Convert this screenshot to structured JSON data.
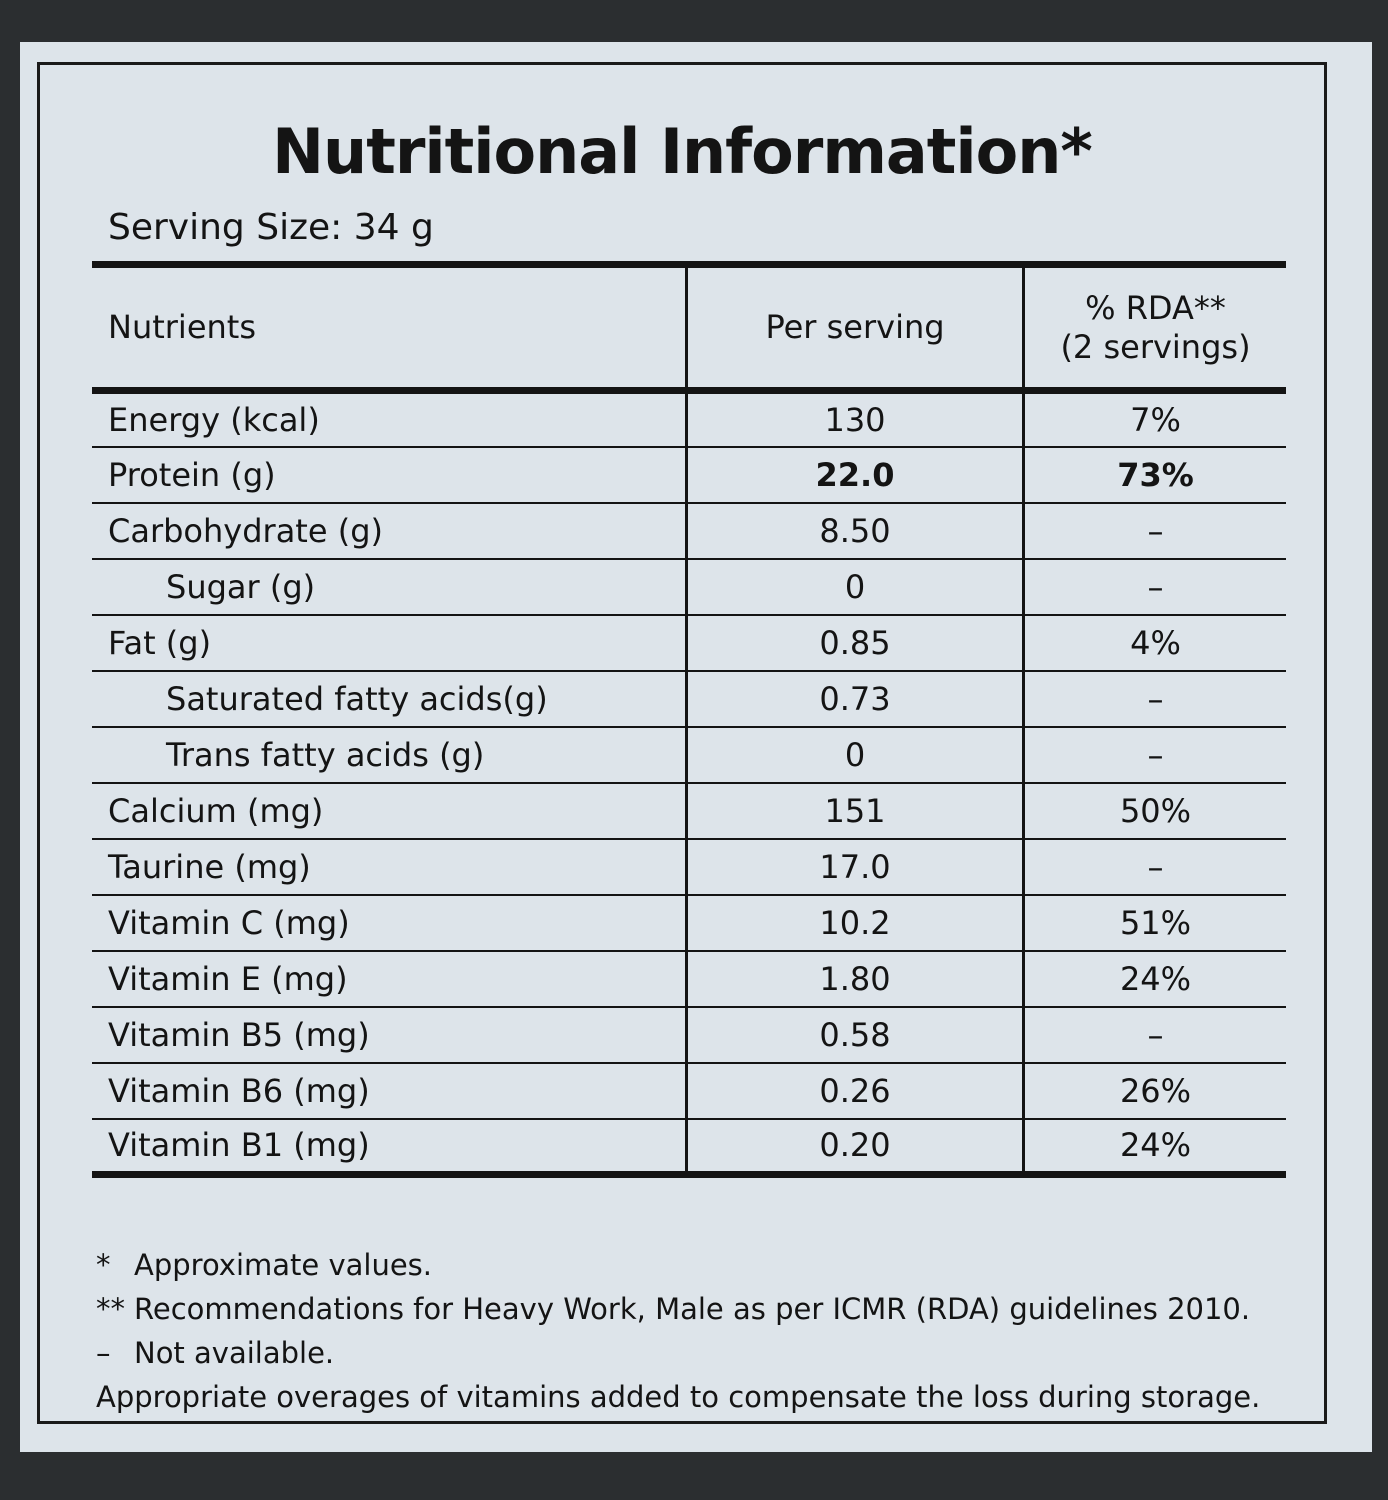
{
  "title": "Nutritional Information*",
  "serving_size": "Serving Size: 34 g",
  "table": {
    "headers": [
      "Nutrients",
      "Per serving",
      "% RDA**",
      "(2 servings)"
    ],
    "rows": [
      {
        "nutrient": "Energy (kcal)",
        "per_serving": "130",
        "rda": "7%",
        "indent": false,
        "bold": false
      },
      {
        "nutrient": "Protein (g)",
        "per_serving": "22.0",
        "rda": "73%",
        "indent": false,
        "bold": true
      },
      {
        "nutrient": "Carbohydrate (g)",
        "per_serving": "8.50",
        "rda": "–",
        "indent": false,
        "bold": false
      },
      {
        "nutrient": "Sugar (g)",
        "per_serving": "0",
        "rda": "–",
        "indent": true,
        "bold": false
      },
      {
        "nutrient": "Fat (g)",
        "per_serving": "0.85",
        "rda": "4%",
        "indent": false,
        "bold": false
      },
      {
        "nutrient": "Saturated fatty acids(g)",
        "per_serving": "0.73",
        "rda": "–",
        "indent": true,
        "bold": false
      },
      {
        "nutrient": "Trans fatty acids (g)",
        "per_serving": "0",
        "rda": "–",
        "indent": true,
        "bold": false
      },
      {
        "nutrient": "Calcium (mg)",
        "per_serving": "151",
        "rda": "50%",
        "indent": false,
        "bold": false
      },
      {
        "nutrient": "Taurine (mg)",
        "per_serving": "17.0",
        "rda": "–",
        "indent": false,
        "bold": false
      },
      {
        "nutrient": "Vitamin C (mg)",
        "per_serving": "10.2",
        "rda": "51%",
        "indent": false,
        "bold": false
      },
      {
        "nutrient": "Vitamin E (mg)",
        "per_serving": "1.80",
        "rda": "24%",
        "indent": false,
        "bold": false
      },
      {
        "nutrient": "Vitamin B5 (mg)",
        "per_serving": "0.58",
        "rda": "–",
        "indent": false,
        "bold": false
      },
      {
        "nutrient": "Vitamin B6 (mg)",
        "per_serving": "0.26",
        "rda": "26%",
        "indent": false,
        "bold": false
      },
      {
        "nutrient": "Vitamin B1 (mg)",
        "per_serving": "0.20",
        "rda": "24%",
        "indent": false,
        "bold": false
      }
    ]
  },
  "footnotes": [
    {
      "mark": "*",
      "text": "Approximate values."
    },
    {
      "mark": "**",
      "text": "Recommendations for Heavy Work, Male as per ICMR (RDA) guidelines 2010."
    },
    {
      "mark": "–",
      "text": "Not available."
    },
    {
      "mark": "",
      "text": "Appropriate overages of vitamins added to compensate the loss during storage."
    }
  ],
  "colors": {
    "label": "#dde4ea",
    "background": "#2b2e30",
    "ink": "#141414"
  }
}
